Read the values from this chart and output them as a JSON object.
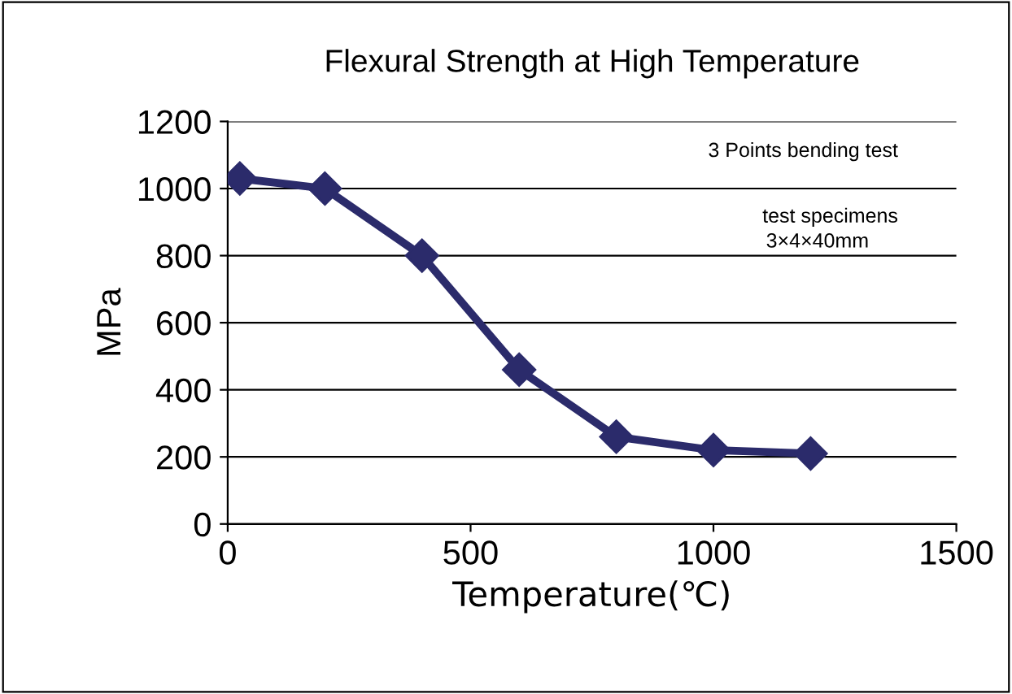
{
  "chart_data": {
    "type": "line",
    "title": "Flexural Strength at High Temperature",
    "xlabel": "Temperature(℃)",
    "ylabel": "MPa",
    "x": [
      25,
      200,
      400,
      600,
      800,
      1000,
      1200
    ],
    "series": [
      {
        "color": "#2b2b6b",
        "values": [
          1030,
          1000,
          800,
          460,
          260,
          220,
          210
        ]
      }
    ],
    "xlim": [
      0,
      1500
    ],
    "xticks": [
      0,
      500,
      1000,
      1500
    ],
    "ylim": [
      0,
      1200
    ],
    "yticks": [
      0,
      200,
      400,
      600,
      800,
      1000,
      1200
    ],
    "grid": "y",
    "marker": "diamond",
    "line_style": "solid",
    "legend": false,
    "annotations": [
      "3 Points bending test",
      "test specimens",
      "3×4×40mm"
    ]
  }
}
